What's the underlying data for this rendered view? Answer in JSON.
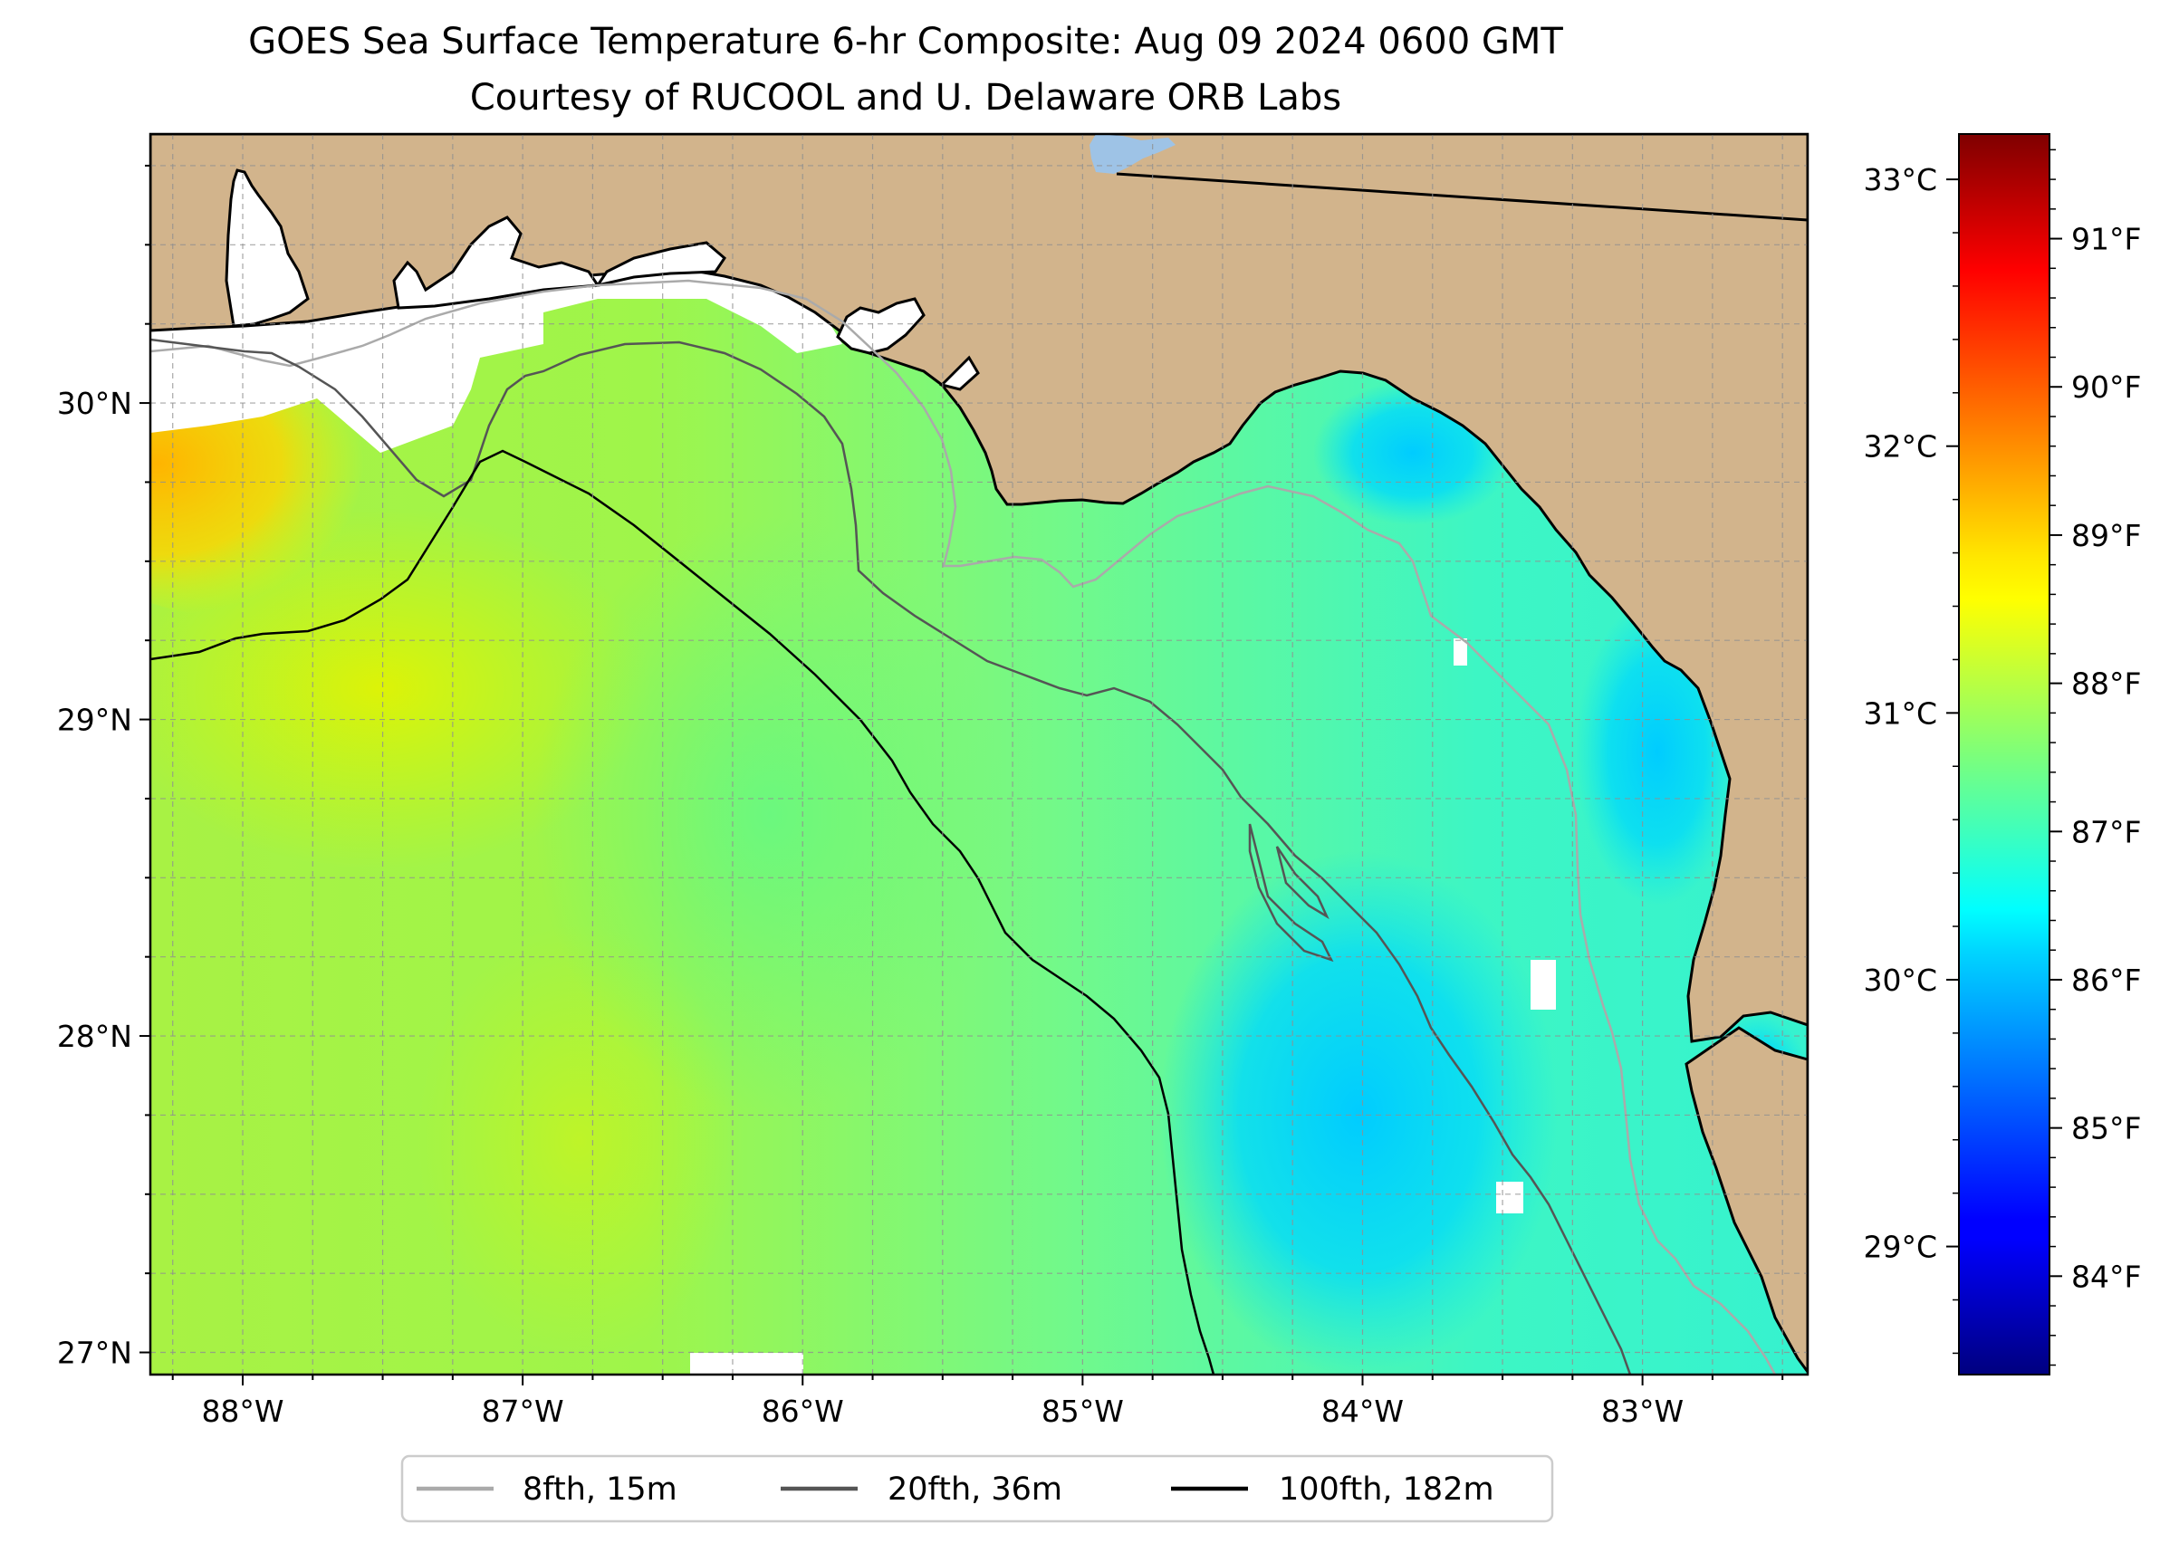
{
  "title": {
    "line1": "GOES Sea Surface Temperature 6-hr Composite: Aug 09 2024 0600 GMT",
    "line2": "Courtesy of RUCOOL and U. Delaware ORB Labs"
  },
  "map": {
    "extent": {
      "lon_min": -88.33,
      "lon_max": -82.41,
      "lat_min": 26.93,
      "lat_max": 30.85
    },
    "lon_ticks": [
      {
        "lon": -88,
        "label": "88°W"
      },
      {
        "lon": -87,
        "label": "87°W"
      },
      {
        "lon": -86,
        "label": "86°W"
      },
      {
        "lon": -85,
        "label": "85°W"
      },
      {
        "lon": -84,
        "label": "84°W"
      },
      {
        "lon": -83,
        "label": "83°W"
      }
    ],
    "lat_ticks": [
      {
        "lat": 27,
        "label": "27°N"
      },
      {
        "lat": 28,
        "label": "28°N"
      },
      {
        "lat": 29,
        "label": "29°N"
      },
      {
        "lat": 30,
        "label": "30°N"
      }
    ],
    "grid": true,
    "colors": {
      "land": "#d2b48c",
      "no_data": "#ffffff",
      "lake": "#9ec3e6"
    }
  },
  "legend": {
    "placement": "bottom-center",
    "items": [
      {
        "label": "8fth, 15m",
        "color": "#aaaaaa"
      },
      {
        "label": "20fth, 36m",
        "color": "#555555"
      },
      {
        "label": "100fth, 182m",
        "color": "#000000"
      }
    ]
  },
  "colorbar": {
    "colormap": "jet",
    "celsius_range": [
      28.52,
      33.17
    ],
    "celsius_ticks": [
      {
        "value": 29,
        "label": "29°C"
      },
      {
        "value": 30,
        "label": "30°C"
      },
      {
        "value": 31,
        "label": "31°C"
      },
      {
        "value": 32,
        "label": "32°C"
      },
      {
        "value": 33,
        "label": "33°C"
      }
    ],
    "fahrenheit_ticks": [
      {
        "value": 84,
        "label": "84°F"
      },
      {
        "value": 85,
        "label": "85°F"
      },
      {
        "value": 86,
        "label": "86°F"
      },
      {
        "value": 87,
        "label": "87°F"
      },
      {
        "value": 88,
        "label": "88°F"
      },
      {
        "value": 89,
        "label": "89°F"
      },
      {
        "value": 90,
        "label": "90°F"
      },
      {
        "value": 91,
        "label": "91°F"
      }
    ]
  }
}
